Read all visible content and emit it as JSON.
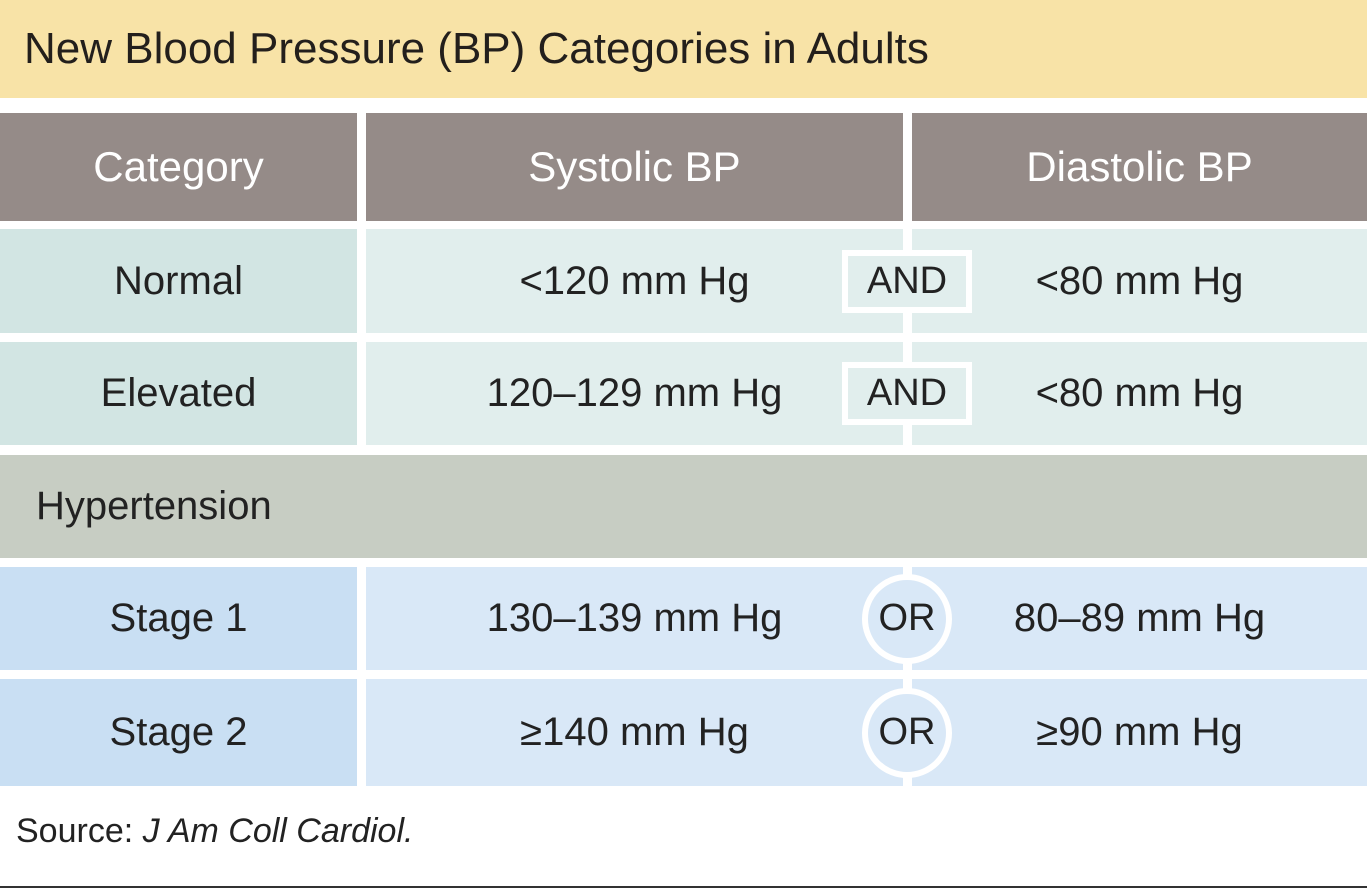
{
  "title": "New Blood Pressure (BP) Categories in Adults",
  "table": {
    "header": [
      "Category",
      "Systolic BP",
      "Diastolic BP"
    ],
    "rows": [
      {
        "category": "Normal",
        "systolic": "<120 mm Hg",
        "connector": "AND",
        "diastolic": "<80 mm Hg"
      },
      {
        "category": "Elevated",
        "systolic": "120–129 mm Hg",
        "connector": "AND",
        "diastolic": "<80 mm Hg"
      }
    ],
    "section": {
      "label": "Hypertension",
      "rows": [
        {
          "category": "Stage 1",
          "systolic": "130–139 mm Hg",
          "connector": "OR",
          "diastolic": "80–89 mm Hg"
        },
        {
          "category": "Stage 2",
          "systolic": "≥140 mm Hg",
          "connector": "OR",
          "diastolic": "≥90 mm Hg"
        }
      ]
    }
  },
  "source": {
    "label": "Source:",
    "citation": "J Am Coll Cardiol."
  }
}
